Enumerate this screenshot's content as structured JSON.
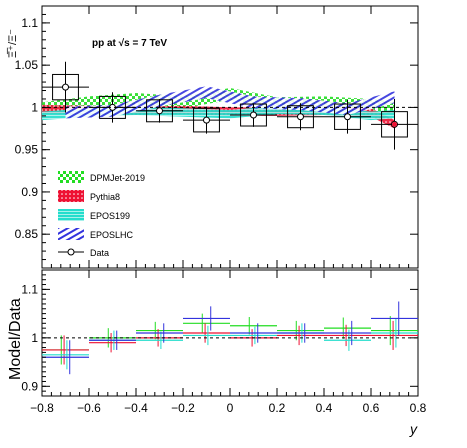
{
  "chart_data": [
    {
      "type": "line",
      "panel": "top",
      "annotation": "pp at √s = 7 TeV",
      "ylabel": "Ξ̅⁺/Ξ⁻",
      "xlabel": "",
      "xlim": [
        -0.8,
        0.8
      ],
      "ylim": [
        0.81,
        1.12
      ],
      "yticks": [
        0.85,
        0.9,
        0.95,
        1,
        1.05,
        1.1
      ],
      "ytick_labels": [
        "0.85",
        "0.9",
        "0.95",
        "1",
        "1.05",
        "1.1"
      ],
      "reference_line": 1,
      "legend_position": "bottom-left",
      "data": {
        "name": "Data",
        "x": [
          -0.7,
          -0.5,
          -0.3,
          -0.1,
          0.1,
          0.3,
          0.5,
          0.7
        ],
        "y": [
          1.024,
          1.0,
          0.996,
          0.985,
          0.991,
          0.989,
          0.989,
          0.98
        ],
        "x_err": [
          0.1,
          0.1,
          0.1,
          0.1,
          0.1,
          0.1,
          0.1,
          0.1
        ],
        "stat_err": [
          0.03,
          0.018,
          0.014,
          0.016,
          0.014,
          0.016,
          0.02,
          0.03
        ],
        "sys_err": [
          0.015,
          0.013,
          0.013,
          0.014,
          0.013,
          0.013,
          0.015,
          0.015
        ]
      },
      "series": [
        {
          "name": "DPMJet-2019",
          "color": "#22dd22",
          "x": [
            -0.8,
            -0.6,
            -0.4,
            -0.2,
            0.0,
            0.2,
            0.4,
            0.6,
            0.7
          ],
          "y": [
            0.999,
            1.006,
            1.01,
            1.006,
            1.016,
            1.005,
            1.006,
            1.003,
            1.0
          ],
          "band_half_width": 0.007
        },
        {
          "name": "Pythia8",
          "color": "#ee1133",
          "x": [
            -0.8,
            -0.6,
            -0.4,
            -0.2,
            0.0,
            0.2,
            0.4,
            0.6,
            0.7
          ],
          "y": [
            0.998,
            0.997,
            0.996,
            0.997,
            0.995,
            0.995,
            0.996,
            0.994,
            0.98
          ],
          "band_half_width": 0.005
        },
        {
          "name": "EPOS199",
          "color": "#22ddcc",
          "x": [
            -0.8,
            -0.6,
            -0.4,
            -0.2,
            0.0,
            0.2,
            0.4,
            0.6,
            0.7
          ],
          "y": [
            0.99,
            0.994,
            0.996,
            0.994,
            0.992,
            0.997,
            0.996,
            0.99,
            0.992
          ],
          "band_half_width": 0.005
        },
        {
          "name": "EPOSLHC",
          "color": "#3333dd",
          "x": [
            -0.7,
            -0.5,
            -0.3,
            -0.1,
            0.1,
            0.3,
            0.5,
            0.7
          ],
          "y": [
            0.994,
            0.996,
            1.008,
            1.018,
            1.006,
            1.004,
            0.998,
            1.012
          ],
          "band_half_width": 0.007
        }
      ]
    },
    {
      "type": "scatter",
      "panel": "bottom",
      "ylabel": "Model/Data",
      "xlabel": "y",
      "xlim": [
        -0.8,
        0.8
      ],
      "ylim": [
        0.88,
        1.14
      ],
      "xticks": [
        -0.8,
        -0.6,
        -0.4,
        -0.2,
        0,
        0.2,
        0.4,
        0.6,
        0.8
      ],
      "xtick_labels": [
        "−0.8",
        "−0.6",
        "−0.4",
        "−0.2",
        "0",
        "0.2",
        "0.4",
        "0.6",
        "0.8"
      ],
      "yticks": [
        0.9,
        1,
        1.1
      ],
      "ytick_labels": [
        "0.9",
        "1",
        "1.1"
      ],
      "reference_line": 1,
      "x": [
        -0.7,
        -0.5,
        -0.3,
        -0.1,
        0.1,
        0.3,
        0.5,
        0.7
      ],
      "series": [
        {
          "name": "DPMJet-2019",
          "color": "#22dd22",
          "values": [
            0.975,
            1.0,
            1.015,
            1.03,
            1.025,
            1.015,
            1.02,
            1.015
          ],
          "err": [
            0.03,
            0.02,
            0.018,
            0.02,
            0.018,
            0.02,
            0.022,
            0.03
          ]
        },
        {
          "name": "Pythia8",
          "color": "#ee1133",
          "values": [
            0.975,
            0.99,
            1.0,
            1.01,
            1.0,
            1.005,
            1.005,
            1.005
          ],
          "err": [
            0.03,
            0.02,
            0.018,
            0.02,
            0.018,
            0.02,
            0.022,
            0.03
          ]
        },
        {
          "name": "EPOS199",
          "color": "#22ddcc",
          "values": [
            0.965,
            0.995,
            0.995,
            1.005,
            1.005,
            1.01,
            0.995,
            1.01
          ],
          "err": [
            0.03,
            0.02,
            0.018,
            0.02,
            0.018,
            0.02,
            0.022,
            0.03
          ]
        },
        {
          "name": "EPOSLHC",
          "color": "#3333dd",
          "values": [
            0.96,
            0.995,
            1.01,
            1.04,
            1.01,
            1.01,
            1.01,
            1.04
          ],
          "err": [
            0.035,
            0.02,
            0.02,
            0.025,
            0.02,
            0.02,
            0.025,
            0.035
          ]
        }
      ]
    }
  ]
}
